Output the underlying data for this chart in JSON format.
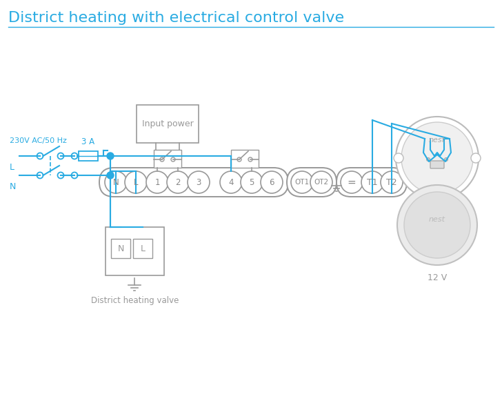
{
  "title": "District heating with electrical control valve",
  "title_color": "#29ABE2",
  "title_fontsize": 16,
  "wire_color": "#29ABE2",
  "box_color": "#999999",
  "bg_color": "#ffffff",
  "terminal_text_color": "#888888",
  "terminal_labels_main": [
    "N",
    "L",
    "1",
    "2",
    "3",
    "4",
    "5",
    "6"
  ],
  "ot_labels": [
    "OT1",
    "OT2"
  ],
  "t_special": [
    "≡",
    "T1",
    "T2"
  ],
  "mains_label": "230V AC/50 Hz",
  "fuse_label": "3 A",
  "valve_label": "District heating valve",
  "volt_label": "12 V",
  "input_power_label": "Input power",
  "L_label": "L",
  "N_label": "N"
}
